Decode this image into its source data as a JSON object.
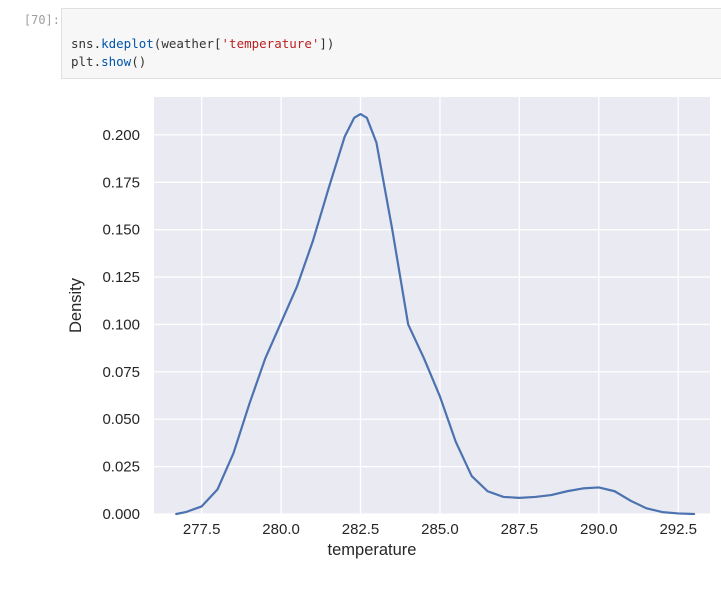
{
  "cell": {
    "prompt": "[70]:",
    "line1": {
      "a": "sns.",
      "fn": "kdeplot",
      "b": "(weather[",
      "str": "'temperature'",
      "c": "])"
    },
    "line2": {
      "a": "plt.",
      "fn": "show",
      "b": "()"
    }
  },
  "chart_data": {
    "type": "line",
    "title": "",
    "xlabel": "temperature",
    "ylabel": "Density",
    "xlim": [
      276.0,
      293.5
    ],
    "ylim": [
      0.0,
      0.22
    ],
    "x_ticks": [
      "277.5",
      "280.0",
      "282.5",
      "285.0",
      "287.5",
      "290.0",
      "292.5"
    ],
    "y_ticks": [
      "0.000",
      "0.025",
      "0.050",
      "0.075",
      "0.100",
      "0.125",
      "0.150",
      "0.175",
      "0.200"
    ],
    "grid": true,
    "background": "#eaeaf2",
    "line_color": "#4c72b0",
    "series": [
      {
        "x": [
          276.7,
          277.0,
          277.5,
          278.0,
          278.5,
          279.0,
          279.5,
          280.0,
          280.5,
          281.0,
          281.5,
          282.0,
          282.3,
          282.5,
          282.7,
          283.0,
          283.5,
          284.0,
          284.5,
          285.0,
          285.5,
          286.0,
          286.5,
          287.0,
          287.5,
          288.0,
          288.5,
          289.0,
          289.5,
          290.0,
          290.5,
          291.0,
          291.5,
          292.0,
          292.5,
          293.0
        ],
        "y": [
          0.0,
          0.001,
          0.004,
          0.013,
          0.032,
          0.058,
          0.082,
          0.101,
          0.12,
          0.144,
          0.172,
          0.199,
          0.209,
          0.211,
          0.209,
          0.196,
          0.15,
          0.1,
          0.082,
          0.062,
          0.038,
          0.02,
          0.012,
          0.009,
          0.0085,
          0.009,
          0.01,
          0.012,
          0.0135,
          0.014,
          0.012,
          0.007,
          0.003,
          0.001,
          0.0003,
          0.0
        ]
      }
    ]
  }
}
